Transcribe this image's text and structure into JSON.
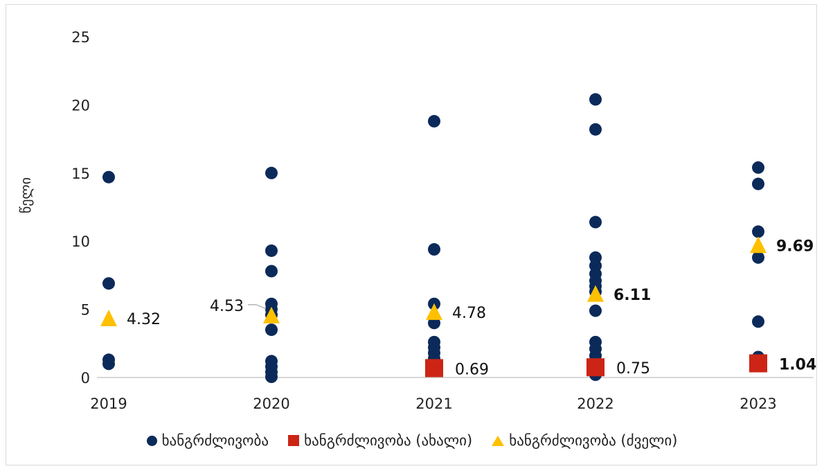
{
  "chart_data": {
    "type": "scatter",
    "ylabel": "წელი",
    "ylim": [
      0,
      25
    ],
    "yticks": [
      "0",
      "5",
      "10",
      "15",
      "20",
      "25"
    ],
    "categories": [
      "2019",
      "2020",
      "2021",
      "2022",
      "2023"
    ],
    "grid": false,
    "legend_position": "bottom",
    "series": [
      {
        "name": "ხანგრძლივობა",
        "marker": "circle",
        "color": "#0b2a5a",
        "points": [
          {
            "x": "2019",
            "y": 14.7
          },
          {
            "x": "2019",
            "y": 6.9
          },
          {
            "x": "2019",
            "y": 1.3
          },
          {
            "x": "2019",
            "y": 1.0
          },
          {
            "x": "2020",
            "y": 15.0
          },
          {
            "x": "2020",
            "y": 9.3
          },
          {
            "x": "2020",
            "y": 7.8
          },
          {
            "x": "2020",
            "y": 5.4
          },
          {
            "x": "2020",
            "y": 5.0
          },
          {
            "x": "2020",
            "y": 4.6
          },
          {
            "x": "2020",
            "y": 3.5
          },
          {
            "x": "2020",
            "y": 1.2
          },
          {
            "x": "2020",
            "y": 0.8
          },
          {
            "x": "2020",
            "y": 0.4
          },
          {
            "x": "2020",
            "y": 0.05
          },
          {
            "x": "2021",
            "y": 18.8
          },
          {
            "x": "2021",
            "y": 9.4
          },
          {
            "x": "2021",
            "y": 5.4
          },
          {
            "x": "2021",
            "y": 4.0
          },
          {
            "x": "2021",
            "y": 2.6
          },
          {
            "x": "2021",
            "y": 2.2
          },
          {
            "x": "2021",
            "y": 1.8
          },
          {
            "x": "2021",
            "y": 1.4
          },
          {
            "x": "2022",
            "y": 20.4
          },
          {
            "x": "2022",
            "y": 18.2
          },
          {
            "x": "2022",
            "y": 11.4
          },
          {
            "x": "2022",
            "y": 8.8
          },
          {
            "x": "2022",
            "y": 8.2
          },
          {
            "x": "2022",
            "y": 7.6
          },
          {
            "x": "2022",
            "y": 7.1
          },
          {
            "x": "2022",
            "y": 6.7
          },
          {
            "x": "2022",
            "y": 6.3
          },
          {
            "x": "2022",
            "y": 4.9
          },
          {
            "x": "2022",
            "y": 2.6
          },
          {
            "x": "2022",
            "y": 2.1
          },
          {
            "x": "2022",
            "y": 1.6
          },
          {
            "x": "2022",
            "y": 1.0
          },
          {
            "x": "2022",
            "y": 0.2
          },
          {
            "x": "2023",
            "y": 15.4
          },
          {
            "x": "2023",
            "y": 14.2
          },
          {
            "x": "2023",
            "y": 10.7
          },
          {
            "x": "2023",
            "y": 8.8
          },
          {
            "x": "2023",
            "y": 4.1
          },
          {
            "x": "2023",
            "y": 1.5
          },
          {
            "x": "2023",
            "y": 0.9
          }
        ]
      },
      {
        "name": "ხანგრძლივობა (ახალი)",
        "marker": "square",
        "color": "#cc2515",
        "points": [
          {
            "x": "2021",
            "y": 0.69,
            "label": "0.69"
          },
          {
            "x": "2022",
            "y": 0.75,
            "label": "0.75"
          },
          {
            "x": "2023",
            "y": 1.04,
            "label": "1.04"
          }
        ]
      },
      {
        "name": "ხანგრძლივობა (ძველი)",
        "marker": "triangle",
        "color": "#ffc000",
        "points": [
          {
            "x": "2019",
            "y": 4.32,
            "label": "4.32"
          },
          {
            "x": "2020",
            "y": 4.53,
            "label": "4.53"
          },
          {
            "x": "2021",
            "y": 4.78,
            "label": "4.78"
          },
          {
            "x": "2022",
            "y": 6.11,
            "label": "6.11"
          },
          {
            "x": "2023",
            "y": 9.69,
            "label": "9.69"
          }
        ]
      }
    ]
  }
}
